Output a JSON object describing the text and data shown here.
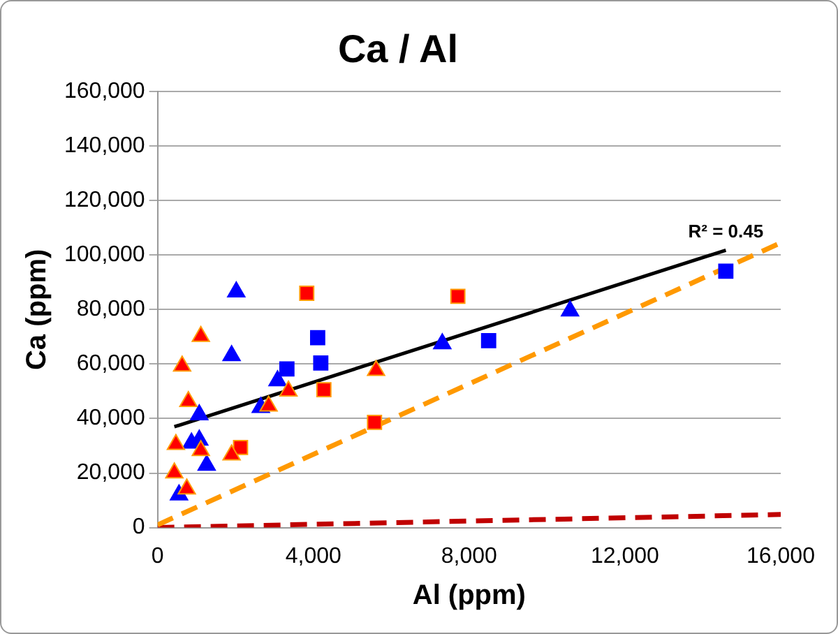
{
  "chart_data": {
    "type": "scatter",
    "title": "Ca / Al",
    "xlabel": "Al (ppm)",
    "ylabel": "Ca (ppm)",
    "xlim": [
      0,
      16000
    ],
    "xticks": [
      {
        "value": 0,
        "label": "0"
      },
      {
        "value": 4000,
        "label": "4,000"
      },
      {
        "value": 8000,
        "label": "8,000"
      },
      {
        "value": 12000,
        "label": "12,000"
      },
      {
        "value": 16000,
        "label": "16,000"
      }
    ],
    "ylim": [
      0,
      160000
    ],
    "yticks": [
      {
        "value": 0,
        "label": "0"
      },
      {
        "value": 20000,
        "label": "20,000"
      },
      {
        "value": 40000,
        "label": "40,000"
      },
      {
        "value": 60000,
        "label": "60,000"
      },
      {
        "value": 80000,
        "label": "80,000"
      },
      {
        "value": 100000,
        "label": "100,000"
      },
      {
        "value": 120000,
        "label": "120,000"
      },
      {
        "value": 140000,
        "label": "140,000"
      },
      {
        "value": 160000,
        "label": "160,000"
      }
    ],
    "grid": "y",
    "legend": false,
    "annotations": [
      {
        "text": "R² = 0.45",
        "x": 14590,
        "y": 101800
      }
    ],
    "series": [
      {
        "type": "scatter",
        "marker": "triangle",
        "color": "#ff0000",
        "x": [
          630,
          1110,
          790,
          470,
          430,
          750,
          1110,
          1900,
          2850,
          3360,
          5610
        ],
        "values": [
          59300,
          70200,
          46300,
          30500,
          20100,
          14200,
          28300,
          26700,
          44600,
          50100,
          57700
        ]
      },
      {
        "type": "scatter",
        "marker": "triangle",
        "color": "#0000ff",
        "x": [
          2020,
          1900,
          1070,
          870,
          1070,
          1260,
          550,
          2650,
          3080,
          7310,
          10590
        ],
        "values": [
          86500,
          63100,
          41400,
          31000,
          32100,
          22900,
          12000,
          44100,
          53900,
          67500,
          79500
        ]
      },
      {
        "type": "scatter",
        "marker": "square",
        "color": "#0000ff",
        "x": [
          3320,
          4110,
          4190,
          8500,
          14590
        ],
        "values": [
          58200,
          69700,
          60400,
          68600,
          94100
        ]
      },
      {
        "type": "scatter",
        "marker": "square",
        "color": "#ff0000",
        "x": [
          3830,
          4270,
          5570,
          2130,
          7710
        ],
        "values": [
          86000,
          50600,
          38600,
          29400,
          84900
        ]
      },
      {
        "type": "line",
        "marker": "none",
        "line_style": "solid",
        "color": "#000000",
        "x": [
          430,
          14590
        ],
        "values": [
          37000,
          101800
        ]
      },
      {
        "type": "line",
        "marker": "none",
        "line_style": "dashed",
        "color": "#ff9900",
        "x": [
          0,
          16000
        ],
        "values": [
          1000,
          104500
        ]
      },
      {
        "type": "line",
        "marker": "none",
        "line_style": "dashed",
        "color": "#c00000",
        "x": [
          0,
          16000
        ],
        "values": [
          0,
          4800
        ]
      }
    ]
  }
}
